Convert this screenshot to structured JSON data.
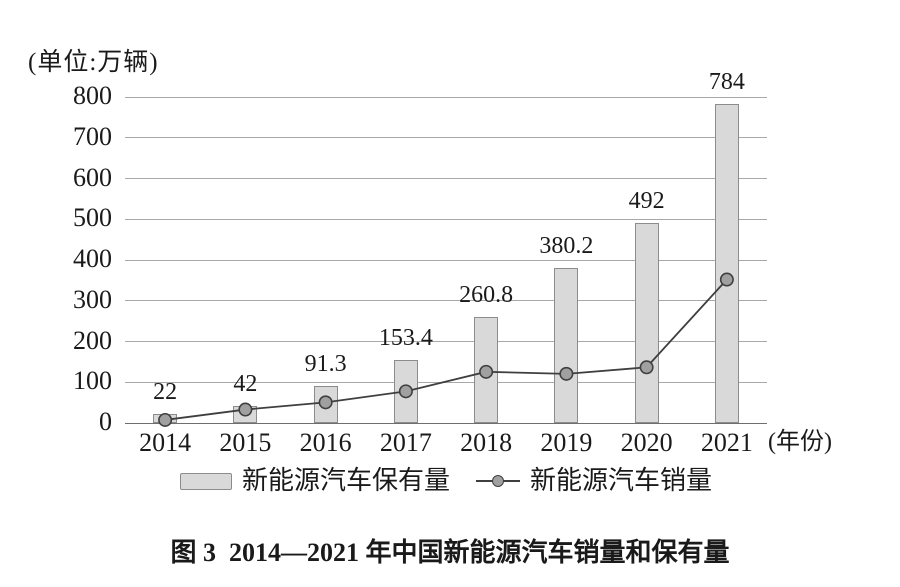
{
  "unit_label": "(单位:万辆)",
  "x_axis_suffix": "(年份)",
  "caption": "图 3  2014—2021 年中国新能源汽车销量和保有量",
  "legend": [
    {
      "label": "新能源汽车保有量"
    },
    {
      "label": "新能源汽车销量"
    }
  ],
  "colors": {
    "bar_fill": "#D9D9D9",
    "bar_border": "#8C8C8C",
    "line": "#3F3F3F",
    "marker_fill": "#A0A0A0",
    "grid": "#A8A8A8",
    "axis": "#6E6E6E",
    "text": "#1A1A1A"
  },
  "chart_data": {
    "type": "bar",
    "categories": [
      "2014",
      "2015",
      "2016",
      "2017",
      "2018",
      "2019",
      "2020",
      "2021"
    ],
    "series": [
      {
        "name": "新能源汽车保有量",
        "type": "bar",
        "values": [
          22,
          42,
          91.3,
          153.4,
          260.8,
          380.2,
          492,
          784
        ],
        "labels": [
          "22",
          "42",
          "91.3",
          "153.4",
          "260.8",
          "380.2",
          "492",
          "784"
        ]
      },
      {
        "name": "新能源汽车销量",
        "type": "line",
        "values": [
          7.5,
          33,
          50.7,
          77.7,
          125.6,
          120.6,
          136.7,
          352.1
        ]
      }
    ],
    "title": "图 3  2014—2021 年中国新能源汽车销量和保有量",
    "xlabel": "(年份)",
    "ylabel": "(单位:万辆)",
    "ylim": [
      0,
      800
    ],
    "ytick_step": 100,
    "grid": true,
    "legend_position": "bottom"
  }
}
